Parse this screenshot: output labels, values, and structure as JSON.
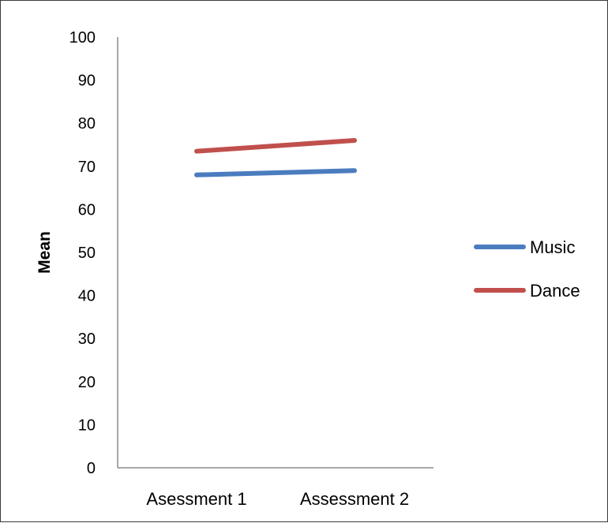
{
  "chart_data": {
    "type": "line",
    "title": "",
    "xlabel": "",
    "ylabel": "Mean",
    "categories": [
      "Asessment 1",
      "Assessment 2"
    ],
    "ylim": [
      0,
      100
    ],
    "yticks": [
      0,
      10,
      20,
      30,
      40,
      50,
      60,
      70,
      80,
      90,
      100
    ],
    "grid": false,
    "legend_position": "right",
    "series": [
      {
        "name": "Music",
        "values": [
          68,
          69
        ],
        "color": "#4a7dbf"
      },
      {
        "name": "Dance",
        "values": [
          73.5,
          76
        ],
        "color": "#c0504d"
      }
    ]
  }
}
